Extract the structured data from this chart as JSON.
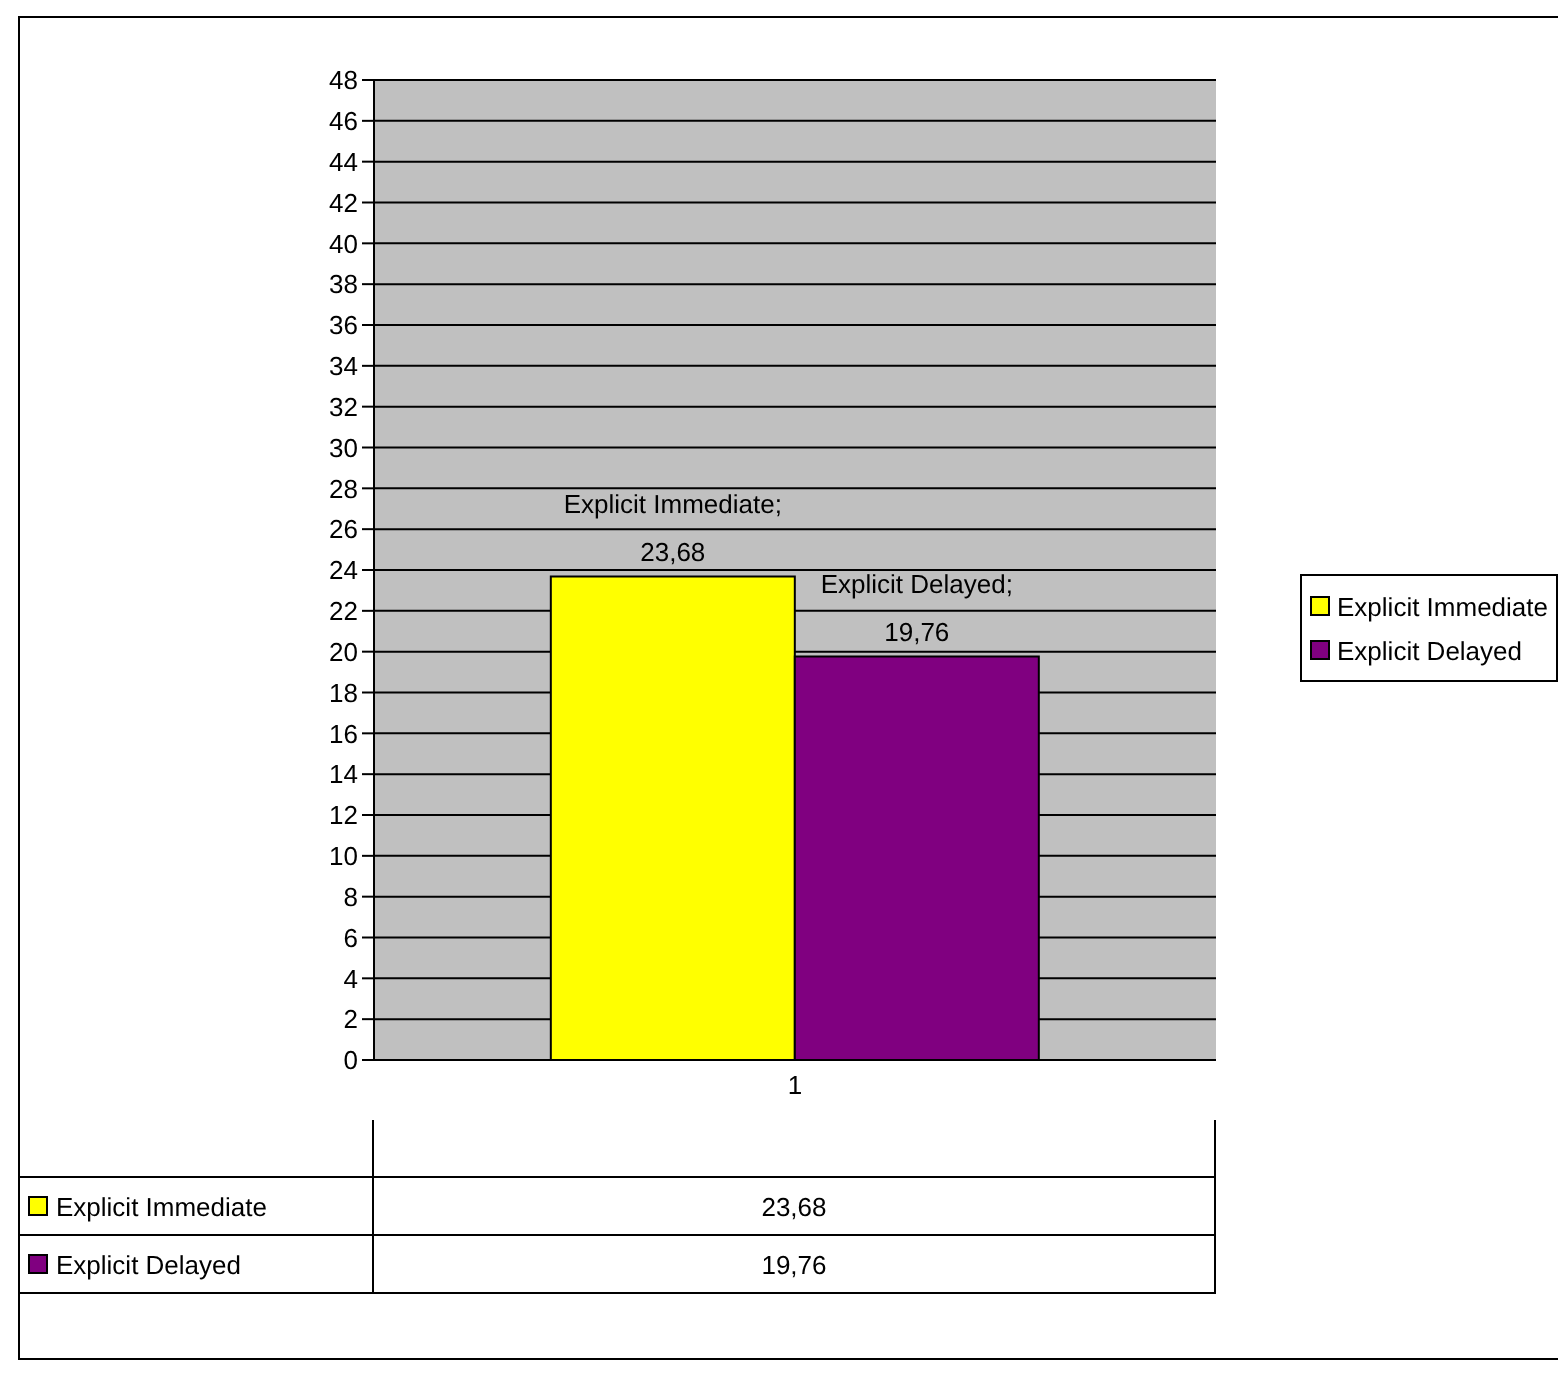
{
  "chart_data": {
    "type": "bar",
    "categories": [
      "1"
    ],
    "series": [
      {
        "name": "Explicit Immediate",
        "color": "#ffff00",
        "values": [
          23.68
        ],
        "value_labels": [
          "Explicit Immediate; 23,68"
        ]
      },
      {
        "name": "Explicit Delayed",
        "color": "#800080",
        "values": [
          19.76
        ],
        "value_labels": [
          "Explicit Delayed; 19,76"
        ]
      }
    ],
    "ylim": [
      0,
      48
    ],
    "yticks": [
      0,
      2,
      4,
      6,
      8,
      10,
      12,
      14,
      16,
      18,
      20,
      22,
      24,
      26,
      28,
      30,
      32,
      34,
      36,
      38,
      40,
      42,
      44,
      46,
      48
    ],
    "grid": "y",
    "legend": "right",
    "annotations": [
      "23,68",
      "19,76"
    ]
  }
}
